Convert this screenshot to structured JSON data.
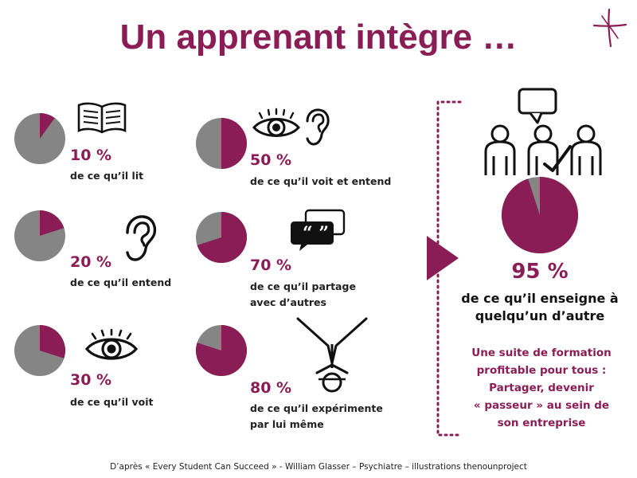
{
  "title": "Un apprenant intègre …",
  "colors": {
    "accent": "#8b1d56",
    "pie_rest": "#858585"
  },
  "items": [
    {
      "percent": "10 %",
      "value": 10,
      "desc_lines": [
        "de ce qu’il lit"
      ],
      "icon": "book-icon"
    },
    {
      "percent": "20 %",
      "value": 20,
      "desc_lines": [
        "de ce qu’il entend"
      ],
      "icon": "ear-icon"
    },
    {
      "percent": "30 %",
      "value": 30,
      "desc_lines": [
        "de ce qu’il voit"
      ],
      "icon": "eye-icon"
    },
    {
      "percent": "50 %",
      "value": 50,
      "desc_lines": [
        "de ce qu’il voit et entend"
      ],
      "icon": "eye-and-ear-icon"
    },
    {
      "percent": "70 %",
      "value": 70,
      "desc_lines": [
        "de ce qu’il partage",
        "avec d’autres"
      ],
      "icon": "speech-bubble-icon"
    },
    {
      "percent": "80 %",
      "value": 80,
      "desc_lines": [
        "de ce qu’il expérimente",
        "par lui même"
      ],
      "icon": "person-upside-down-icon"
    }
  ],
  "highlight": {
    "percent": "95 %",
    "value": 95,
    "desc_lines": [
      "de ce qu’il enseigne à",
      "quelqu’un d’autre"
    ],
    "icon": "group-teaching-icon",
    "tagline_lines": [
      "Une suite de formation",
      "profitable pour tous :",
      "Partager, devenir",
      "« passeur » au sein de",
      "son entreprise"
    ]
  },
  "footer": "D’après « Every Student Can Succeed » - William Glasser – Psychiatre – illustrations thenounproject"
}
